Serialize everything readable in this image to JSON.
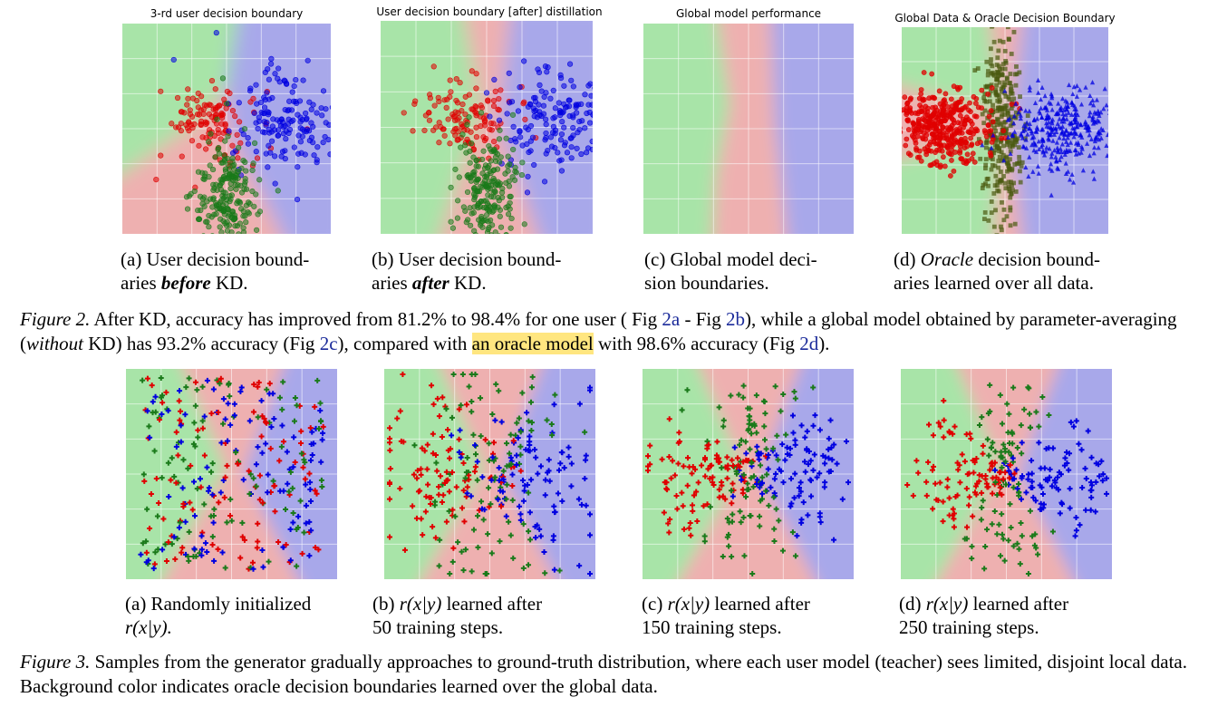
{
  "figure2": {
    "panel_titles": [
      "3-rd user decision boundary",
      "User decision boundary [after] distillation",
      "Global model performance",
      "Global Data & Oracle Decision Boundary"
    ],
    "subcaptions": [
      {
        "a": "(a) User decision bound-",
        "b1": "aries ",
        "b_bold": "before",
        "b2": " KD."
      },
      {
        "a": "(b) User decision bound-",
        "b1": "aries ",
        "b_bold": "after",
        "b2": " KD."
      },
      {
        "a": "(c) Global model deci-",
        "b1": "sion boundaries.",
        "b_bold": "",
        "b2": ""
      },
      {
        "a_it": "Oracle",
        "a_pre": "(d) ",
        "a_post": " decision bound-",
        "b1": "aries learned over all data.",
        "b_bold": "",
        "b2": ""
      }
    ],
    "caption": {
      "label": "Figure 2.",
      "t1": " After KD, accuracy has improved from 81.2% to 98.4% for one user ( Fig ",
      "r1": "2a",
      "t2": " - Fig ",
      "r2": "2b",
      "t3": "), while a global model obtained by parameter-averaging (",
      "it": "without",
      "t4": " KD) has 93.2% accuracy (Fig ",
      "r3": "2c",
      "t5": "), compared with ",
      "hl": "an oracle model",
      "t6": " with 98.6% accuracy (Fig ",
      "r4": "2d",
      "t7": ")."
    }
  },
  "figure3": {
    "subcaptions": [
      {
        "line1": "(a) Randomly initialized",
        "line2": "r(x|y)."
      },
      {
        "line1pre": "(b) ",
        "math": "r(x|y)",
        "line1post": " learned after",
        "line2": "50 training steps."
      },
      {
        "line1pre": "(c) ",
        "math": "r(x|y)",
        "line1post": " learned after",
        "line2": "150 training steps."
      },
      {
        "line1pre": "(d) ",
        "math": "r(x|y)",
        "line1post": " learned after",
        "line2": "250 training steps."
      }
    ],
    "caption": {
      "label": "Figure 3.",
      "text": " Samples from the generator gradually approaches to ground-truth distribution, where each user model (teacher) sees limited, disjoint local data. Background color indicates oracle decision boundaries learned over the global data."
    }
  },
  "colors": {
    "green_region": "#a8e4a8",
    "red_region": "#eeb0b0",
    "blue_region": "#a8a8ea",
    "red_points": "#e00000",
    "green_points": "#1a7a1a",
    "blue_points": "#0000e0",
    "dark_points": "#4a5a10",
    "highlight": "#ffe680",
    "ref_link": "#1a2a9a"
  }
}
